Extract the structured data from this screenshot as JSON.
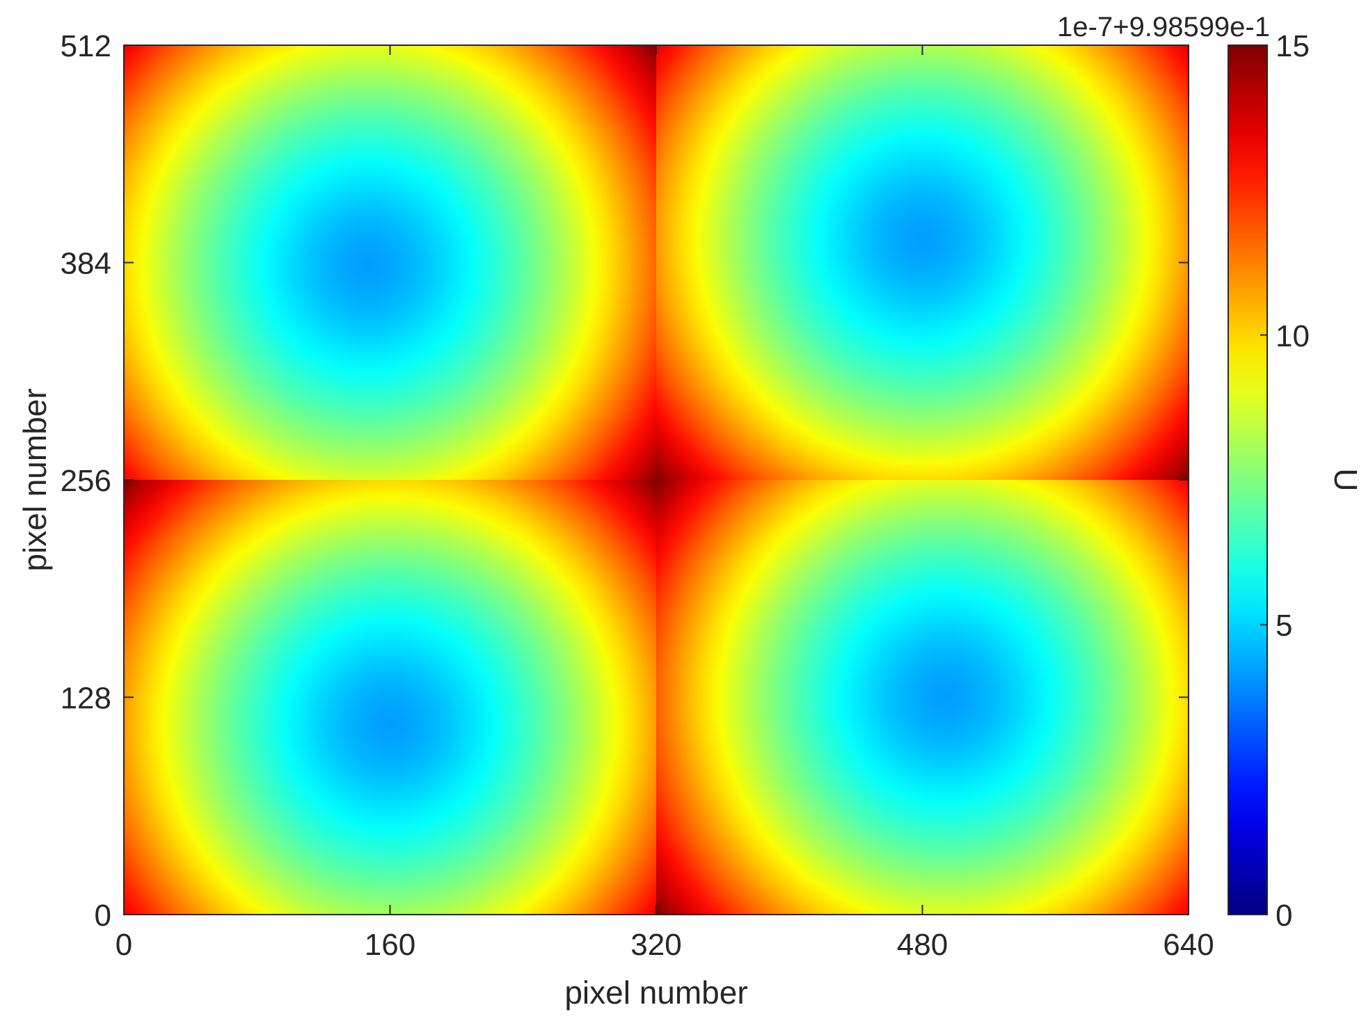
{
  "chart_data": {
    "type": "heatmap",
    "title": "",
    "xlabel": "pixel number",
    "ylabel": "pixel number",
    "xlim": [
      0,
      640
    ],
    "ylim": [
      0,
      512
    ],
    "x_ticks": [
      0,
      160,
      320,
      480,
      640
    ],
    "y_ticks": [
      0,
      128,
      256,
      384,
      512
    ],
    "x_tick_labels": [
      "0",
      "160",
      "320",
      "480",
      "640"
    ],
    "y_tick_labels": [
      "0",
      "128",
      "256",
      "384",
      "512"
    ],
    "grid": false,
    "colormap": "jet",
    "colorbar": {
      "label": "U",
      "range": [
        0,
        15
      ],
      "ticks": [
        0,
        5,
        10,
        15
      ],
      "tick_labels": [
        "0",
        "5",
        "10",
        "15"
      ],
      "exponent_label": "1e-7+9.98599e-1",
      "placement": "right"
    },
    "quadrants": [
      {
        "x_range": [
          0,
          320
        ],
        "y_range": [
          256,
          512
        ],
        "center": [
          147,
          382
        ],
        "min_value": 4.2,
        "corner_value": 13.5
      },
      {
        "x_range": [
          320,
          640
        ],
        "y_range": [
          256,
          512
        ],
        "center": [
          480,
          398
        ],
        "min_value": 4.2,
        "corner_value": 13.5
      },
      {
        "x_range": [
          0,
          320
        ],
        "y_range": [
          0,
          256
        ],
        "center": [
          160,
          112
        ],
        "min_value": 4.2,
        "corner_value": 13.5
      },
      {
        "x_range": [
          320,
          640
        ],
        "y_range": [
          0,
          256
        ],
        "center": [
          494,
          128
        ],
        "min_value": 4.2,
        "corner_value": 13.5
      }
    ],
    "max_value": 15
  }
}
